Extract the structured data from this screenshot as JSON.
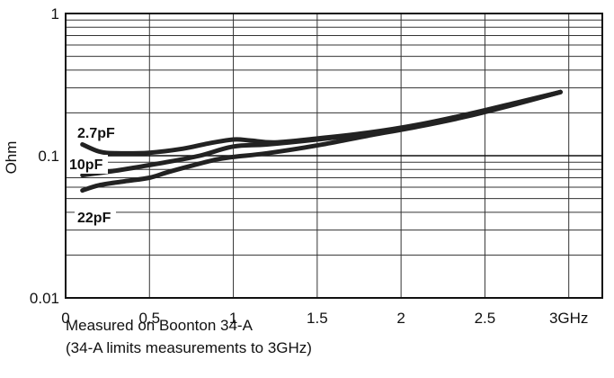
{
  "chart_data": {
    "type": "line",
    "title": "",
    "xlabel": "",
    "ylabel": "Ohm",
    "xlim": [
      0,
      3.2
    ],
    "ylim": [
      0.01,
      1
    ],
    "y_scale": "log",
    "x_ticks": [
      {
        "value": 0,
        "label": "0"
      },
      {
        "value": 0.5,
        "label": "0.5"
      },
      {
        "value": 1,
        "label": "1"
      },
      {
        "value": 1.5,
        "label": "1.5"
      },
      {
        "value": 2,
        "label": "2"
      },
      {
        "value": 2.5,
        "label": "2.5"
      },
      {
        "value": 3,
        "label": "3GHz"
      }
    ],
    "y_ticks": [
      {
        "value": 1,
        "label": "1"
      },
      {
        "value": 0.1,
        "label": "0.1"
      },
      {
        "value": 0.01,
        "label": "0.01"
      }
    ],
    "grid": true,
    "line_color": "#222222",
    "series": [
      {
        "name": "2.7pF",
        "x": [
          0.1,
          0.2,
          0.3,
          0.5,
          0.7,
          0.85,
          1.0,
          1.1,
          1.25,
          1.5,
          1.8,
          2.1,
          2.4,
          2.7,
          2.95
        ],
        "y": [
          0.12,
          0.107,
          0.104,
          0.105,
          0.112,
          0.122,
          0.13,
          0.128,
          0.124,
          0.132,
          0.145,
          0.165,
          0.196,
          0.238,
          0.28
        ]
      },
      {
        "name": "10pF",
        "x": [
          0.1,
          0.25,
          0.4,
          0.6,
          0.8,
          1.0,
          1.2,
          1.5,
          1.8,
          2.1,
          2.4,
          2.7,
          2.95
        ],
        "y": [
          0.073,
          0.077,
          0.082,
          0.09,
          0.1,
          0.116,
          0.12,
          0.13,
          0.143,
          0.162,
          0.193,
          0.235,
          0.28
        ]
      },
      {
        "name": "22pF",
        "x": [
          0.1,
          0.2,
          0.35,
          0.5,
          0.6,
          0.75,
          0.9,
          1.0,
          1.2,
          1.5,
          1.8,
          2.1,
          2.4,
          2.7,
          2.95
        ],
        "y": [
          0.057,
          0.062,
          0.066,
          0.07,
          0.076,
          0.085,
          0.094,
          0.098,
          0.104,
          0.118,
          0.138,
          0.16,
          0.19,
          0.233,
          0.28
        ]
      }
    ],
    "annotations": [
      "Measured on Boonton 34-A",
      "(34-A limits measurements to 3GHz)"
    ]
  }
}
